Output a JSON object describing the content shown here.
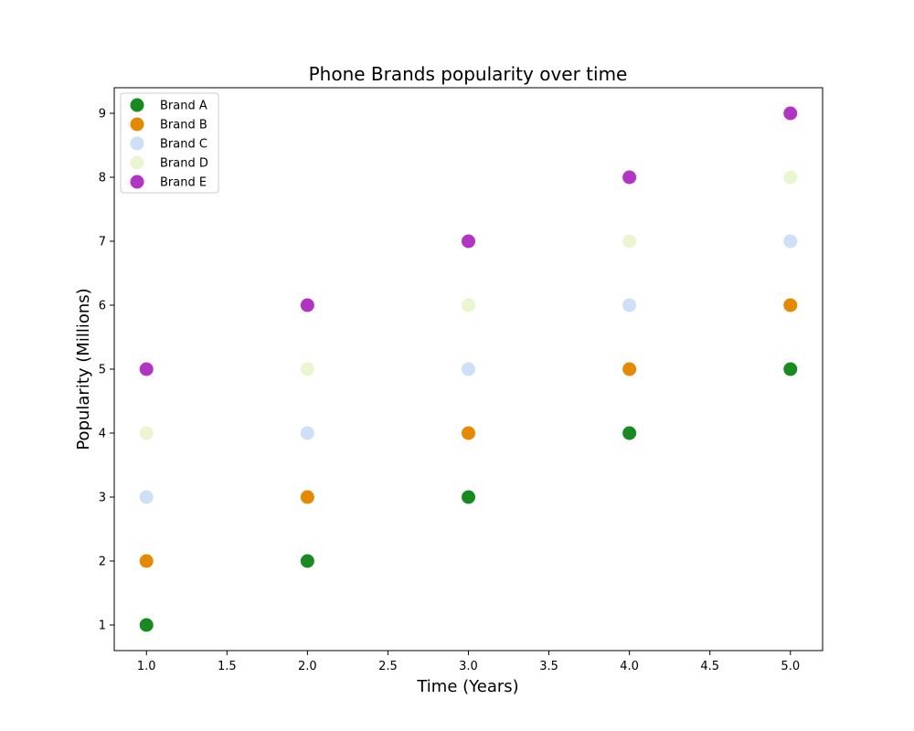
{
  "chart_data": {
    "type": "scatter",
    "title": "Phone Brands popularity over time",
    "xlabel": "Time (Years)",
    "ylabel": "Popularity (Millions)",
    "xlim": [
      0.8,
      5.2
    ],
    "ylim": [
      0.6,
      9.4
    ],
    "xticks": [
      1.0,
      1.5,
      2.0,
      2.5,
      3.0,
      3.5,
      4.0,
      4.5,
      5.0
    ],
    "xtick_labels": [
      "1.0",
      "1.5",
      "2.0",
      "2.5",
      "3.0",
      "3.5",
      "4.0",
      "4.5",
      "5.0"
    ],
    "yticks": [
      1,
      2,
      3,
      4,
      5,
      6,
      7,
      8,
      9
    ],
    "ytick_labels": [
      "1",
      "2",
      "3",
      "4",
      "5",
      "6",
      "7",
      "8",
      "9"
    ],
    "grid": false,
    "legend_position": "top-left",
    "x": [
      1,
      2,
      3,
      4,
      5
    ],
    "series": [
      {
        "name": "Brand A",
        "color": "#178b20",
        "x": [
          1,
          2,
          3,
          4,
          5
        ],
        "y": [
          1,
          2,
          3,
          4,
          5
        ]
      },
      {
        "name": "Brand B",
        "color": "#e58a00",
        "x": [
          1,
          2,
          3,
          4,
          5
        ],
        "y": [
          2,
          3,
          4,
          5,
          6
        ]
      },
      {
        "name": "Brand C",
        "color": "#cde0f7",
        "x": [
          1,
          2,
          3,
          5
        ],
        "y": [
          3,
          4,
          5,
          7
        ]
      },
      {
        "name": "Brand D",
        "color": "#eaf6cf",
        "x": [
          1,
          2,
          3,
          4,
          5
        ],
        "y": [
          4,
          5,
          6,
          7,
          8
        ]
      },
      {
        "name": "Brand E",
        "color": "#b134c4",
        "x": [
          1,
          2,
          3,
          4,
          5
        ],
        "y": [
          5,
          6,
          7,
          8,
          9
        ]
      }
    ],
    "extra_points": [
      {
        "series": "Brand C",
        "x": 4,
        "y": 6
      }
    ]
  }
}
